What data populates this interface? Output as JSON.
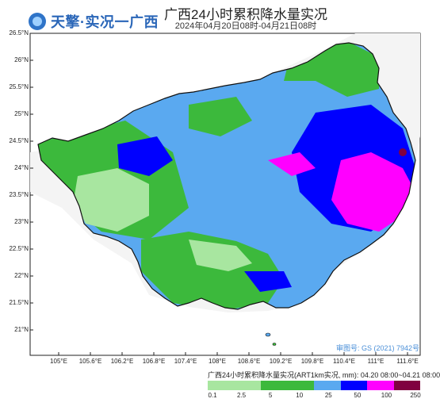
{
  "header": {
    "brand": "天擎·实况一广西",
    "brand_icon": "globe-icon",
    "title": "广西24小时累积降水量实况",
    "subtitle": "2024年04月20日08时-04月21日08时"
  },
  "map": {
    "lat_labels": [
      "26.5°N",
      "26°N",
      "25.5°N",
      "25°N",
      "24.5°N",
      "24°N",
      "23.5°N",
      "23°N",
      "22.5°N",
      "22°N",
      "21.5°N",
      "21°N"
    ],
    "lon_labels": [
      "105°E",
      "105.6°E",
      "106.2°E",
      "106.8°E",
      "107.4°E",
      "108°E",
      "108.6°E",
      "109.2°E",
      "109.8°E",
      "110.4°E",
      "111°E",
      "111.6°E"
    ],
    "approval_number": "审图号: GS (2021) 7942号",
    "colors": {
      "ocean": "#ffffff",
      "outside": "#f4f4f4",
      "lightgreen": "#a8e6a0",
      "green": "#3cb93c",
      "lightblue": "#5aa9f0",
      "blue": "#0000ff",
      "magenta": "#ff00ff",
      "maroon": "#800040",
      "border": "#111111"
    }
  },
  "legend": {
    "title": "广西24小时累积降水量实况(ART1km实况, mm): 04.20 08:00~04.21 08:00",
    "ticks": [
      "0.1",
      "2.5",
      "5",
      "10",
      "25",
      "50",
      "100",
      "250"
    ],
    "swatches": [
      "#a8e6a0",
      "#a8e6a0",
      "#3cb93c",
      "#3cb93c",
      "#5aa9f0",
      "#0000ff",
      "#ff00ff",
      "#800040"
    ]
  }
}
